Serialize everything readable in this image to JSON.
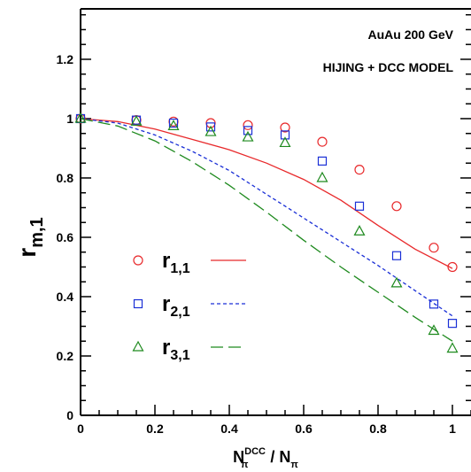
{
  "chart_data": {
    "type": "scatter",
    "annotations": [
      "AuAu 200 GeV",
      "HIJING + DCC MODEL"
    ],
    "xlabel": {
      "main": "N",
      "main_sub": "π",
      "main_sup": "DCC",
      "separator": " / ",
      "denom": "N",
      "denom_sub": "π"
    },
    "ylabel": {
      "main": "r",
      "sub": "m,1"
    },
    "xlim": [
      0,
      1.05
    ],
    "ylim": [
      0,
      1.37
    ],
    "x_ticks": [
      "0",
      "0.2",
      "0.4",
      "0.6",
      "0.8",
      "1"
    ],
    "x_tick_values": [
      0,
      0.2,
      0.4,
      0.6,
      0.8,
      1.0
    ],
    "y_ticks": [
      "0",
      "0.2",
      "0.4",
      "0.6",
      "0.8",
      "1",
      "1.2"
    ],
    "y_tick_values": [
      0,
      0.2,
      0.4,
      0.6,
      0.8,
      1.0,
      1.2
    ],
    "grid": false,
    "legend_position": "center-left",
    "series": [
      {
        "name": "r",
        "name_sub": "1,1",
        "marker": "circle",
        "line_style": "solid",
        "color": "#e8292b",
        "points": [
          [
            0.0,
            1.0
          ],
          [
            0.15,
            0.995
          ],
          [
            0.25,
            0.99
          ],
          [
            0.35,
            0.985
          ],
          [
            0.45,
            0.978
          ],
          [
            0.55,
            0.97
          ],
          [
            0.65,
            0.922
          ],
          [
            0.75,
            0.828
          ],
          [
            0.85,
            0.705
          ],
          [
            0.95,
            0.565
          ],
          [
            1.0,
            0.5
          ]
        ],
        "curve": [
          [
            0.0,
            1.0
          ],
          [
            0.1,
            0.99
          ],
          [
            0.2,
            0.965
          ],
          [
            0.3,
            0.93
          ],
          [
            0.4,
            0.895
          ],
          [
            0.5,
            0.85
          ],
          [
            0.6,
            0.795
          ],
          [
            0.7,
            0.725
          ],
          [
            0.8,
            0.64
          ],
          [
            0.9,
            0.56
          ],
          [
            1.0,
            0.495
          ]
        ]
      },
      {
        "name": "r",
        "name_sub": "2,1",
        "marker": "square",
        "line_style": "dashed-short",
        "color": "#1a2fd6",
        "points": [
          [
            0.0,
            1.0
          ],
          [
            0.15,
            0.995
          ],
          [
            0.25,
            0.985
          ],
          [
            0.35,
            0.972
          ],
          [
            0.45,
            0.96
          ],
          [
            0.55,
            0.945
          ],
          [
            0.65,
            0.857
          ],
          [
            0.75,
            0.705
          ],
          [
            0.85,
            0.538
          ],
          [
            0.95,
            0.375
          ],
          [
            1.0,
            0.31
          ]
        ],
        "curve": [
          [
            0.0,
            1.0
          ],
          [
            0.1,
            0.985
          ],
          [
            0.2,
            0.945
          ],
          [
            0.3,
            0.89
          ],
          [
            0.4,
            0.825
          ],
          [
            0.5,
            0.745
          ],
          [
            0.6,
            0.665
          ],
          [
            0.7,
            0.585
          ],
          [
            0.8,
            0.505
          ],
          [
            0.9,
            0.42
          ],
          [
            1.0,
            0.335
          ]
        ]
      },
      {
        "name": "r",
        "name_sub": "3,1",
        "marker": "triangle",
        "line_style": "dashed-long",
        "color": "#1e8a1e",
        "points": [
          [
            0.0,
            1.0
          ],
          [
            0.15,
            0.99
          ],
          [
            0.25,
            0.975
          ],
          [
            0.35,
            0.955
          ],
          [
            0.45,
            0.937
          ],
          [
            0.55,
            0.918
          ],
          [
            0.65,
            0.8
          ],
          [
            0.75,
            0.62
          ],
          [
            0.85,
            0.445
          ],
          [
            0.95,
            0.285
          ],
          [
            1.0,
            0.225
          ]
        ],
        "curve": [
          [
            0.0,
            1.0
          ],
          [
            0.1,
            0.975
          ],
          [
            0.2,
            0.925
          ],
          [
            0.3,
            0.855
          ],
          [
            0.4,
            0.775
          ],
          [
            0.5,
            0.685
          ],
          [
            0.6,
            0.59
          ],
          [
            0.7,
            0.5
          ],
          [
            0.8,
            0.415
          ],
          [
            0.9,
            0.33
          ],
          [
            1.0,
            0.25
          ]
        ]
      }
    ]
  }
}
